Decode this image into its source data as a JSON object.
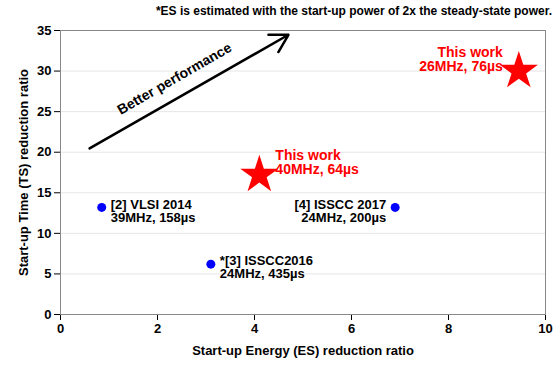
{
  "chart_data": {
    "type": "scatter",
    "caption": "*ES is estimated with the start-up power of 2x the steady-state power.",
    "xlabel": "Start-up Energy (ES) reduction ratio",
    "ylabel": "Start-up Time (TS) reduction ratio",
    "annotation": "Better performance",
    "xlim": [
      0,
      10
    ],
    "ylim": [
      0,
      35
    ],
    "xticks": [
      0,
      2,
      4,
      6,
      8,
      10
    ],
    "yticks": [
      0,
      5,
      10,
      15,
      20,
      25,
      30,
      35
    ],
    "grid": "y",
    "points": [
      {
        "label": "[2] VLSI 2014",
        "detail": "39MHz, 158µs",
        "x": 0.85,
        "y": 13.2,
        "color": "#0000ff",
        "marker": "circle"
      },
      {
        "label": "*[3] ISSCC2016",
        "detail": "24MHz, 435µs",
        "x": 3.1,
        "y": 6.2,
        "color": "#0000ff",
        "marker": "circle"
      },
      {
        "label": "[4] ISSCC 2017",
        "detail": "24MHz, 200µs",
        "x": 6.9,
        "y": 13.2,
        "color": "#0000ff",
        "marker": "circle"
      },
      {
        "label": "This work",
        "detail": "40MHz, 64µs",
        "x": 4.1,
        "y": 17.2,
        "color": "#ff0000",
        "marker": "star"
      },
      {
        "label": "This work",
        "detail": "26MHz, 76µs",
        "x": 9.45,
        "y": 30,
        "color": "#ff0000",
        "marker": "star"
      }
    ]
  }
}
